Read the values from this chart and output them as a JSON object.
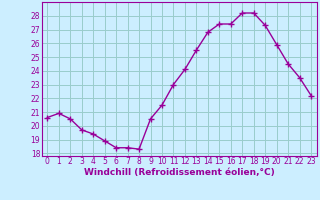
{
  "x": [
    0,
    1,
    2,
    3,
    4,
    5,
    6,
    7,
    8,
    9,
    10,
    11,
    12,
    13,
    14,
    15,
    16,
    17,
    18,
    19,
    20,
    21,
    22,
    23
  ],
  "y": [
    20.6,
    20.9,
    20.5,
    19.7,
    19.4,
    18.9,
    18.4,
    18.4,
    18.3,
    20.5,
    21.5,
    23.0,
    24.1,
    25.5,
    26.8,
    27.4,
    27.4,
    28.2,
    28.2,
    27.3,
    25.9,
    24.5,
    23.5,
    22.2
  ],
  "xlim": [
    -0.5,
    23.5
  ],
  "ylim": [
    17.8,
    29.0
  ],
  "yticks": [
    18,
    19,
    20,
    21,
    22,
    23,
    24,
    25,
    26,
    27,
    28
  ],
  "xticks": [
    0,
    1,
    2,
    3,
    4,
    5,
    6,
    7,
    8,
    9,
    10,
    11,
    12,
    13,
    14,
    15,
    16,
    17,
    18,
    19,
    20,
    21,
    22,
    23
  ],
  "xlabel": "Windchill (Refroidissement éolien,°C)",
  "line_color": "#990099",
  "marker": "+",
  "bg_color": "#cceeff",
  "grid_color": "#99cccc",
  "label_color": "#990099",
  "tick_color": "#990099",
  "tick_fontsize": 5.5,
  "xlabel_fontsize": 6.5,
  "line_width": 1.0,
  "marker_size": 4,
  "marker_edge_width": 1.0
}
